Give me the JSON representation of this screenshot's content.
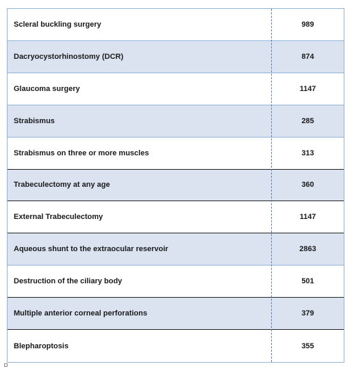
{
  "table": {
    "rows": [
      [
        "Scleral buckling surgery",
        989
      ],
      [
        "Dacryocystorhinostomy (DCR)",
        874
      ],
      [
        "Glaucoma surgery",
        1147
      ],
      [
        "Strabismus",
        285
      ],
      [
        "Strabismus on three or more muscles",
        313
      ],
      [
        "Trabeculectomy at any age",
        360
      ],
      [
        "External Trabeculectomy",
        1147
      ],
      [
        "Aqueous shunt to the extraocular reservoir",
        2863
      ],
      [
        "Destruction of the ciliary body",
        501
      ],
      [
        "Multiple anterior corneal perforations",
        379
      ],
      [
        "Blepharoptosis",
        355
      ]
    ]
  }
}
